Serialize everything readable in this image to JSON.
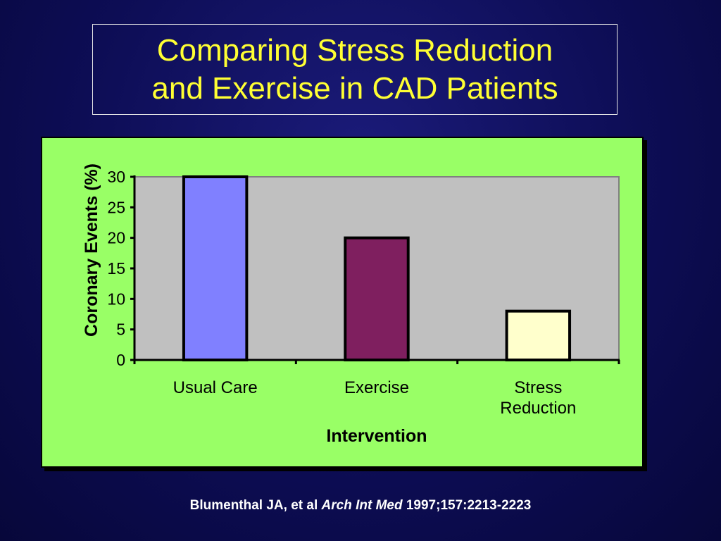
{
  "slide": {
    "title_line1": "Comparing Stress Reduction",
    "title_line2": "and Exercise in CAD Patients",
    "citation_authors": "Blumenthal JA, et al",
    "citation_journal": "Arch Int Med",
    "citation_ref": "1997;157:2213-2223"
  },
  "colors": {
    "background": "#0d0d55",
    "title_text": "#ffff33",
    "chart_panel": "#99ff66",
    "plot_area": "#c0c0c0"
  },
  "chart_data": {
    "type": "bar",
    "categories": [
      [
        "Usual Care"
      ],
      [
        "Exercise"
      ],
      [
        "Stress",
        "Reduction"
      ]
    ],
    "values": [
      30,
      20,
      8
    ],
    "bar_colors": [
      "#8080ff",
      "#7f1f5f",
      "#ffffcc"
    ],
    "xlabel": "Intervention",
    "ylabel": "Coronary Events (%)",
    "ylim": [
      0,
      30
    ],
    "yticks": [
      0,
      5,
      10,
      15,
      20,
      25,
      30
    ],
    "grid": false,
    "legend": "none"
  }
}
